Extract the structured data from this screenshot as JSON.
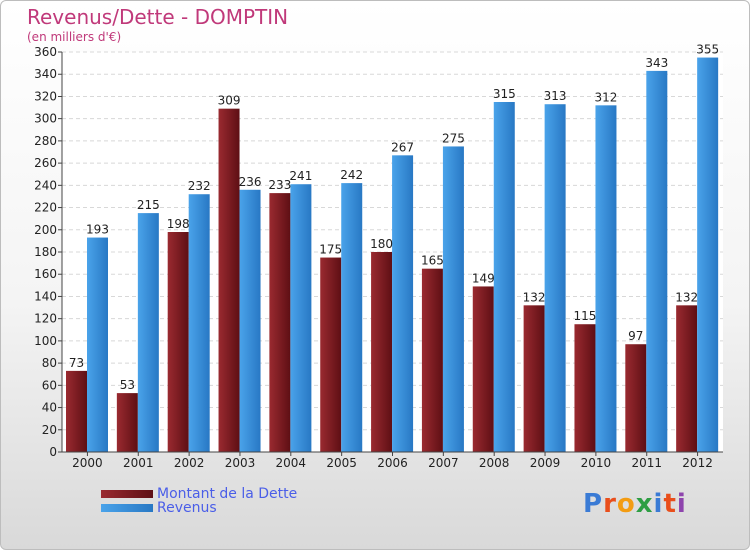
{
  "title": "Revenus/Dette - DOMPTIN",
  "subtitle": "(en milliers d'€)",
  "logo": {
    "text": "Proxiti",
    "letters": [
      "P",
      "r",
      "o",
      "x",
      "i",
      "t",
      "i"
    ],
    "colors": [
      "#3a7bd5",
      "#e94e1b",
      "#f39c12",
      "#2e9e44",
      "#3a7bd5",
      "#e94e1b",
      "#8e44ad"
    ]
  },
  "colors": {
    "dette": "#7a1a1f",
    "revenus": "#3a8fdc",
    "title": "#c0397a",
    "legend_text": "#4a5ee8"
  },
  "chart_data": {
    "type": "bar",
    "categories": [
      "2000",
      "2001",
      "2002",
      "2003",
      "2004",
      "2005",
      "2006",
      "2007",
      "2008",
      "2009",
      "2010",
      "2011",
      "2012"
    ],
    "series": [
      {
        "name": "Montant de la Dette",
        "values": [
          73,
          53,
          198,
          309,
          233,
          175,
          180,
          165,
          149,
          132,
          115,
          97,
          132
        ]
      },
      {
        "name": "Revenus",
        "values": [
          193,
          215,
          232,
          236,
          241,
          242,
          267,
          275,
          315,
          313,
          312,
          343,
          355
        ]
      }
    ],
    "ylim": [
      0,
      360
    ],
    "yticks": [
      0,
      20,
      40,
      60,
      80,
      100,
      120,
      140,
      160,
      180,
      200,
      220,
      240,
      260,
      280,
      300,
      320,
      340,
      360
    ],
    "grid": true,
    "legend": "bottom-left"
  }
}
